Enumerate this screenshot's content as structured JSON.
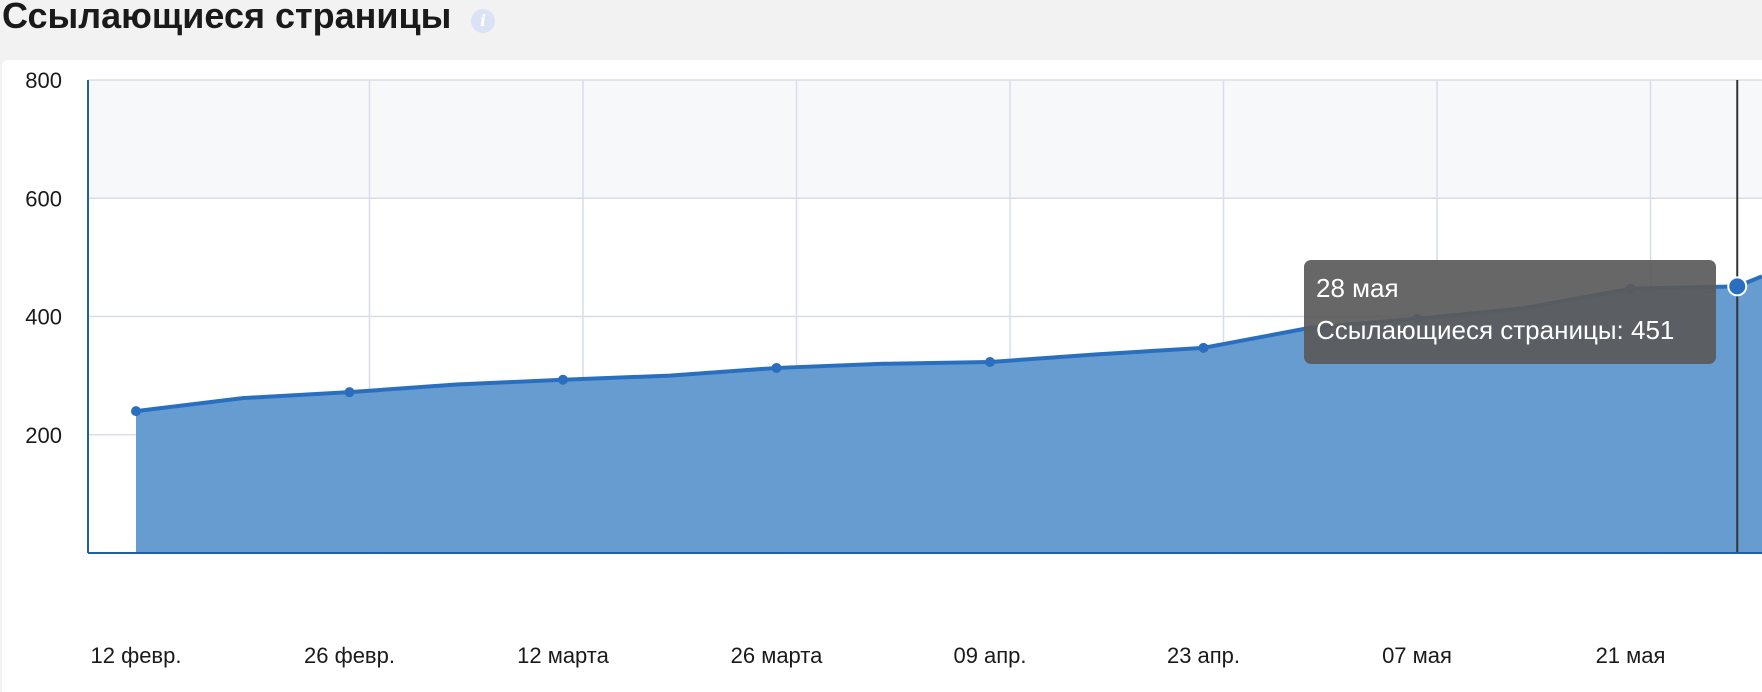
{
  "header": {
    "title": "Ссылающиеся страницы",
    "info_icon": "info-icon"
  },
  "tooltip": {
    "date": "28 мая",
    "series_label": "Ссылающиеся страницы",
    "value": 451,
    "text": "Ссылающиеся страницы: 451"
  },
  "colors": {
    "line": "#2a6fbf",
    "area": "#5f97cf",
    "grid": "#d8dde8",
    "band": "#f7f8fa",
    "axis": "#1f5fa8"
  },
  "chart_data": {
    "type": "area",
    "title": "",
    "xlabel": "",
    "ylabel": "",
    "ylim": [
      0,
      800
    ],
    "yticks": [
      200,
      400,
      600,
      800
    ],
    "xticks": [
      "12 февр.",
      "26 февр.",
      "12 марта",
      "26 марта",
      "09 апр.",
      "23 апр.",
      "07 мая",
      "21 мая"
    ],
    "grid": true,
    "series": [
      {
        "name": "Ссылающиеся страницы",
        "points": [
          {
            "x": "12 февр.",
            "y": 240,
            "marker": true
          },
          {
            "x": "19 февр.",
            "y": 262,
            "marker": false
          },
          {
            "x": "26 февр.",
            "y": 272,
            "marker": true
          },
          {
            "x": "05 марта",
            "y": 285,
            "marker": false
          },
          {
            "x": "12 марта",
            "y": 293,
            "marker": true
          },
          {
            "x": "19 марта",
            "y": 300,
            "marker": false
          },
          {
            "x": "26 марта",
            "y": 313,
            "marker": true
          },
          {
            "x": "02 апр.",
            "y": 320,
            "marker": false
          },
          {
            "x": "09 апр.",
            "y": 323,
            "marker": true
          },
          {
            "x": "16 апр.",
            "y": 336,
            "marker": false
          },
          {
            "x": "23 апр.",
            "y": 347,
            "marker": true
          },
          {
            "x": "30 апр.",
            "y": 381,
            "marker": false
          },
          {
            "x": "07 мая",
            "y": 396,
            "marker": true
          },
          {
            "x": "14 мая",
            "y": 414,
            "marker": false
          },
          {
            "x": "21 мая",
            "y": 447,
            "marker": true
          },
          {
            "x": "28 мая",
            "y": 451,
            "marker": true,
            "hovered": true
          }
        ]
      }
    ]
  }
}
